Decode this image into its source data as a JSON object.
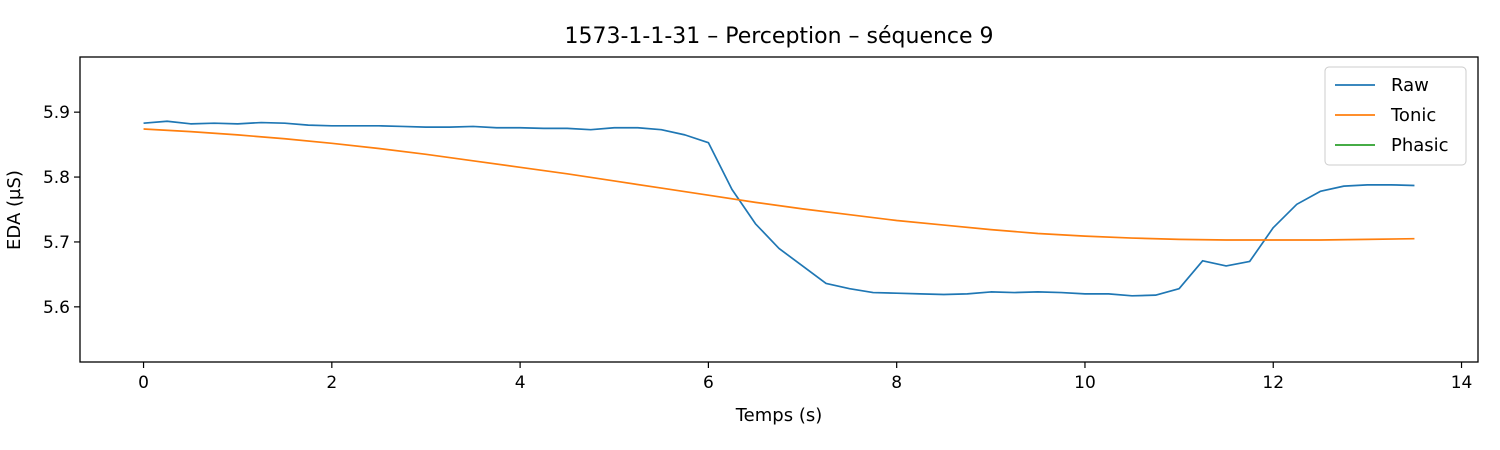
{
  "chart_data": {
    "type": "line",
    "title": "1573-1-1-31 – Perception – séquence 9",
    "xlabel": "Temps (s)",
    "ylabel": "EDA (µS)",
    "xlim": [
      -0.675,
      14.175
    ],
    "ylim": [
      5.515,
      5.985
    ],
    "xticks": [
      0,
      2,
      4,
      6,
      8,
      10,
      12,
      14
    ],
    "xtick_labels": [
      "0",
      "2",
      "4",
      "6",
      "8",
      "10",
      "12",
      "14"
    ],
    "yticks": [
      5.6,
      5.7,
      5.8,
      5.9
    ],
    "ytick_labels": [
      "5.6",
      "5.7",
      "5.8",
      "5.9"
    ],
    "legend_position": "top-right",
    "grid": false,
    "series": [
      {
        "name": "Raw",
        "color": "#1f77b4",
        "x": [
          0,
          0.25,
          0.5,
          0.75,
          1.0,
          1.25,
          1.5,
          1.75,
          2.0,
          2.25,
          2.5,
          2.75,
          3.0,
          3.25,
          3.5,
          3.75,
          4.0,
          4.25,
          4.5,
          4.75,
          5.0,
          5.25,
          5.5,
          5.75,
          6.0,
          6.25,
          6.5,
          6.75,
          7.0,
          7.25,
          7.5,
          7.75,
          8.0,
          8.25,
          8.5,
          8.75,
          9.0,
          9.25,
          9.5,
          9.75,
          10.0,
          10.25,
          10.5,
          10.75,
          11.0,
          11.25,
          11.5,
          11.75,
          12.0,
          12.25,
          12.5,
          12.75,
          13.0,
          13.25,
          13.5
        ],
        "y": [
          5.883,
          5.886,
          5.882,
          5.883,
          5.882,
          5.884,
          5.883,
          5.88,
          5.879,
          5.879,
          5.879,
          5.878,
          5.877,
          5.877,
          5.878,
          5.876,
          5.876,
          5.875,
          5.875,
          5.873,
          5.876,
          5.876,
          5.873,
          5.865,
          5.853,
          5.781,
          5.728,
          5.69,
          5.663,
          5.636,
          5.628,
          5.622,
          5.621,
          5.62,
          5.619,
          5.62,
          5.623,
          5.622,
          5.623,
          5.622,
          5.62,
          5.62,
          5.617,
          5.618,
          5.628,
          5.671,
          5.663,
          5.67,
          5.722,
          5.758,
          5.778,
          5.786,
          5.788,
          5.788,
          5.787
        ]
      },
      {
        "name": "Tonic",
        "color": "#ff7f0e",
        "x": [
          0,
          0.5,
          1.0,
          1.5,
          2.0,
          2.5,
          3.0,
          3.5,
          4.0,
          4.5,
          5.0,
          5.5,
          6.0,
          6.5,
          7.0,
          7.5,
          8.0,
          8.5,
          9.0,
          9.5,
          10.0,
          10.5,
          11.0,
          11.5,
          12.0,
          12.5,
          13.0,
          13.5
        ],
        "y": [
          5.874,
          5.87,
          5.865,
          5.859,
          5.852,
          5.844,
          5.835,
          5.825,
          5.815,
          5.805,
          5.794,
          5.783,
          5.772,
          5.761,
          5.751,
          5.742,
          5.733,
          5.726,
          5.719,
          5.713,
          5.709,
          5.706,
          5.704,
          5.703,
          5.703,
          5.703,
          5.704,
          5.705
        ]
      },
      {
        "name": "Phasic",
        "color": "#2ca02c",
        "x": [],
        "y": []
      }
    ]
  }
}
